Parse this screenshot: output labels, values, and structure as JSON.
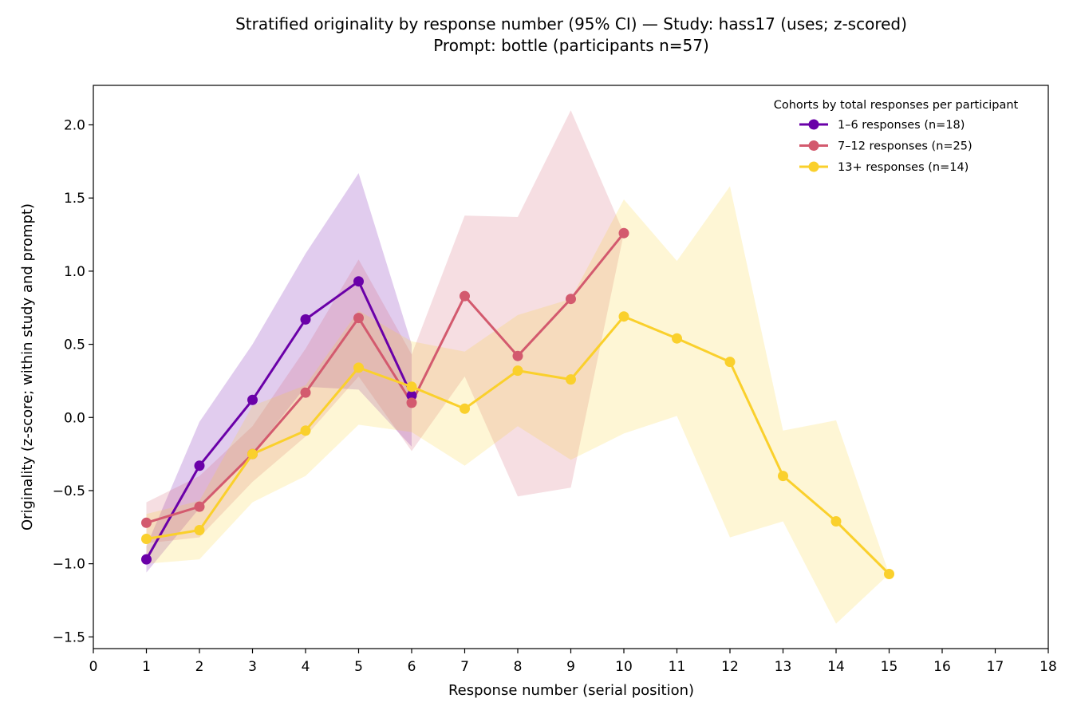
{
  "chart_data": {
    "type": "line",
    "title_line1": "Stratified originality by response number (95% CI) — Study: hass17 (uses; z-scored)",
    "title_line2": "Prompt: bottle (participants n=57)",
    "xlabel": "Response number (serial position)",
    "ylabel": "Originality (z-score; within study and prompt)",
    "xlim": [
      0,
      18
    ],
    "ylim": [
      -1.58,
      2.27
    ],
    "xticks": [
      0,
      1,
      2,
      3,
      4,
      5,
      6,
      7,
      8,
      9,
      10,
      11,
      12,
      13,
      14,
      15,
      16,
      17,
      18
    ],
    "yticks": [
      -1.5,
      -1.0,
      -0.5,
      0.0,
      0.5,
      1.0,
      1.5,
      2.0
    ],
    "ytick_labels": [
      "−1.5",
      "−1.0",
      "−0.5",
      "0.0",
      "0.5",
      "1.0",
      "1.5",
      "2.0"
    ],
    "grid": false,
    "legend": {
      "title": "Cohorts by total responses per participant",
      "placement": "top-right"
    },
    "series": [
      {
        "name": "1–6 responses (n=18)",
        "color": "#6a00a8",
        "x": [
          1,
          2,
          3,
          4,
          5,
          6
        ],
        "y": [
          -0.97,
          -0.33,
          0.12,
          0.67,
          0.93,
          0.15
        ],
        "ci_lower": [
          -1.06,
          -0.62,
          -0.25,
          0.21,
          0.19,
          -0.2
        ],
        "ci_upper": [
          -0.88,
          -0.03,
          0.5,
          1.12,
          1.67,
          0.5
        ]
      },
      {
        "name": "7–12 responses (n=25)",
        "color": "#d35a6e",
        "x": [
          1,
          2,
          3,
          4,
          5,
          6,
          7,
          8,
          9,
          10
        ],
        "y": [
          -0.72,
          -0.61,
          -0.25,
          0.17,
          0.68,
          0.1,
          0.83,
          0.42,
          0.81,
          1.26
        ],
        "ci_lower": [
          -0.86,
          -0.82,
          -0.44,
          -0.13,
          0.28,
          -0.23,
          0.28,
          -0.54,
          -0.48,
          1.26
        ],
        "ci_upper": [
          -0.58,
          -0.4,
          -0.06,
          0.47,
          1.08,
          0.43,
          1.38,
          1.37,
          2.1,
          1.26
        ]
      },
      {
        "name": "13+ responses (n=14)",
        "color": "#fad02c",
        "x": [
          1,
          2,
          3,
          4,
          5,
          6,
          7,
          8,
          9,
          10,
          11,
          12,
          13,
          14,
          15
        ],
        "y": [
          -0.83,
          -0.77,
          -0.25,
          -0.09,
          0.34,
          0.21,
          0.06,
          0.32,
          0.26,
          0.69,
          0.54,
          0.38,
          -0.4,
          -0.71,
          -1.07
        ],
        "ci_lower": [
          -1.0,
          -0.97,
          -0.58,
          -0.4,
          -0.05,
          -0.1,
          -0.33,
          -0.06,
          -0.29,
          -0.11,
          0.01,
          -0.82,
          -0.71,
          -1.41,
          -1.07
        ],
        "ci_upper": [
          -0.66,
          -0.57,
          0.08,
          0.22,
          0.73,
          0.52,
          0.45,
          0.7,
          0.81,
          1.49,
          1.07,
          1.58,
          -0.09,
          -0.02,
          -1.07
        ]
      }
    ]
  }
}
